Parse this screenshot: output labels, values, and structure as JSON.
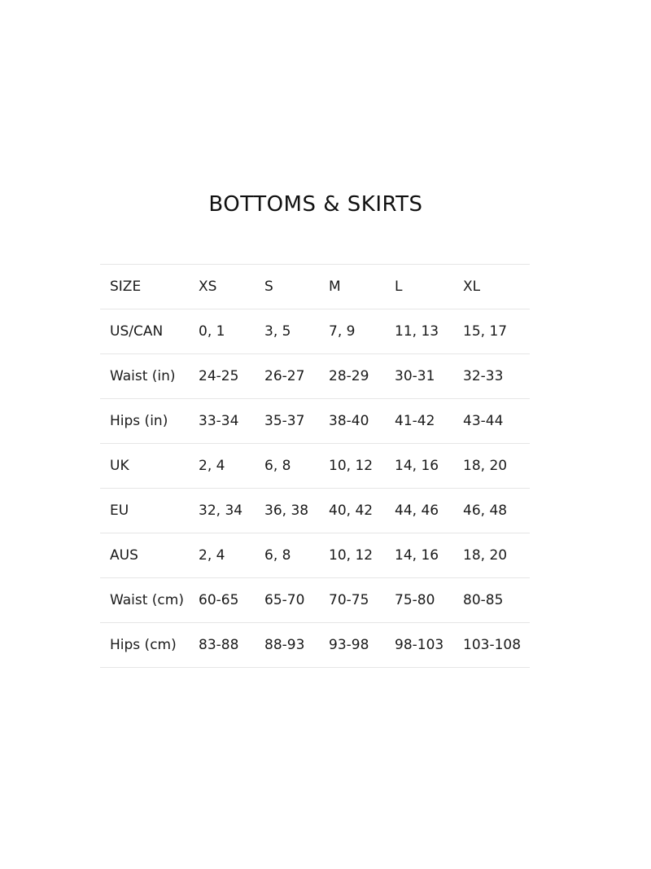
{
  "title": "BOTTOMS & SKIRTS",
  "table": {
    "header": [
      "SIZE",
      "XS",
      "S",
      "M",
      "L",
      "XL"
    ],
    "rows": [
      [
        "US/CAN",
        "0, 1",
        "3, 5",
        "7, 9",
        "11, 13",
        "15, 17"
      ],
      [
        "Waist (in)",
        "24-25",
        "26-27",
        "28-29",
        "30-31",
        "32-33"
      ],
      [
        "Hips (in)",
        "33-34",
        "35-37",
        "38-40",
        "41-42",
        "43-44"
      ],
      [
        "UK",
        "2, 4",
        "6, 8",
        "10, 12",
        "14, 16",
        "18, 20"
      ],
      [
        "EU",
        "32, 34",
        "36, 38",
        "40, 42",
        "44, 46",
        "46, 48"
      ],
      [
        "AUS",
        "2, 4",
        "6, 8",
        "10, 12",
        "14, 16",
        "18, 20"
      ],
      [
        "Waist (cm)",
        "60-65",
        "65-70",
        "70-75",
        "75-80",
        "80-85"
      ],
      [
        "Hips (cm)",
        "83-88",
        "88-93",
        "93-98",
        "98-103",
        "103-108"
      ]
    ]
  }
}
